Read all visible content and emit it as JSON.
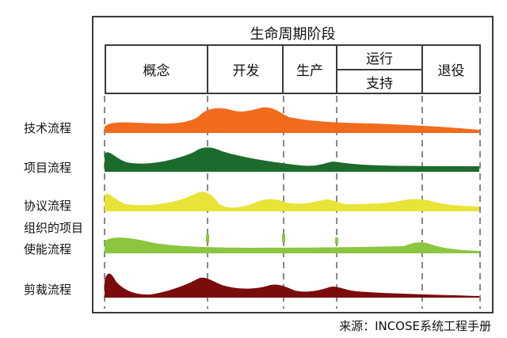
{
  "header": {
    "title": "生命周期阶段",
    "phases": {
      "concept": "概念",
      "development": "开发",
      "production": "生产",
      "operation": "运行",
      "support": "支持",
      "retirement": "退役"
    }
  },
  "rows": [
    {
      "label": "技术流程",
      "color": "#f26b1d"
    },
    {
      "label": "项目流程",
      "color": "#1d6b2c"
    },
    {
      "label": "协议流程",
      "color": "#e8e337"
    },
    {
      "label": "组织的项目",
      "color": "#8cc63f"
    },
    {
      "label": "使能流程",
      "color": "#8cc63f"
    },
    {
      "label": "剪裁流程",
      "color": "#7a0c0c"
    }
  ],
  "source": "来源：INCOSE系统工程手册"
}
